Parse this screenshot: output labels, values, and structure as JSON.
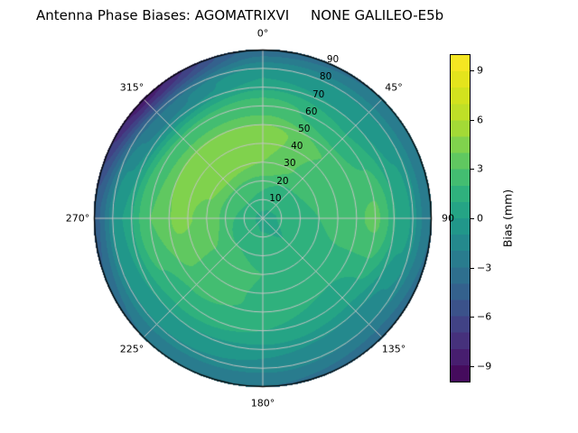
{
  "chart_data": {
    "type": "heatmap",
    "projection": "polar",
    "title": "Antenna Phase Biases: AGOMATRIXVI     NONE GALILEO-E5b",
    "colormap": "viridis",
    "contour_interval_mm": 1,
    "colorbar": {
      "label": "Bias (mm)",
      "vmin": -10,
      "vmax": 10,
      "ticks": [
        {
          "value": -9,
          "label": "−9"
        },
        {
          "value": -6,
          "label": "−6"
        },
        {
          "value": -3,
          "label": "−3"
        },
        {
          "value": 0,
          "label": "0"
        },
        {
          "value": 3,
          "label": "3"
        },
        {
          "value": 6,
          "label": "6"
        },
        {
          "value": 9,
          "label": "9"
        }
      ]
    },
    "theta_labels": [
      {
        "angle_deg": 0,
        "label": "0°"
      },
      {
        "angle_deg": 45,
        "label": "45°"
      },
      {
        "angle_deg": 90,
        "label": "90"
      },
      {
        "angle_deg": 135,
        "label": "135°"
      },
      {
        "angle_deg": 180,
        "label": "180°"
      },
      {
        "angle_deg": 225,
        "label": "225°"
      },
      {
        "angle_deg": 270,
        "label": "270°"
      },
      {
        "angle_deg": 315,
        "label": "315°"
      }
    ],
    "r_axis": {
      "max": 90,
      "grid_step": 10,
      "label_angle_deg": 22.5,
      "ticks": [
        10,
        20,
        30,
        40,
        50,
        60,
        70,
        80,
        90
      ]
    },
    "azimuth_grid_deg": [
      0,
      45,
      90,
      135,
      180,
      225,
      270,
      315
    ],
    "radius_grid": [
      0,
      15,
      30,
      45,
      60,
      75,
      90
    ],
    "bias_grid_mm": [
      [
        0.8,
        0.8,
        0.8,
        0.8,
        0.8,
        0.8,
        0.8,
        0.8
      ],
      [
        2.0,
        1.5,
        1.2,
        1.0,
        1.2,
        1.8,
        2.0,
        2.2
      ],
      [
        4.0,
        2.8,
        2.0,
        1.5,
        2.0,
        2.8,
        3.8,
        4.3
      ],
      [
        4.5,
        3.0,
        2.6,
        1.2,
        1.8,
        2.8,
        4.2,
        4.8
      ],
      [
        2.5,
        1.2,
        3.2,
        0.5,
        1.0,
        1.5,
        3.0,
        2.2
      ],
      [
        0.0,
        -0.5,
        0.5,
        -1.5,
        -1.0,
        -0.5,
        0.0,
        -2.5
      ],
      [
        -3.5,
        -3.0,
        -3.0,
        -3.5,
        -3.0,
        -3.0,
        -4.5,
        -8.5
      ]
    ],
    "colormap_stops": [
      {
        "t": 0.0,
        "color": "#440154"
      },
      {
        "t": 0.1,
        "color": "#482878"
      },
      {
        "t": 0.2,
        "color": "#3e4a89"
      },
      {
        "t": 0.3,
        "color": "#31688e"
      },
      {
        "t": 0.4,
        "color": "#26828e"
      },
      {
        "t": 0.5,
        "color": "#1f9e89"
      },
      {
        "t": 0.6,
        "color": "#35b779"
      },
      {
        "t": 0.7,
        "color": "#6ece58"
      },
      {
        "t": 0.8,
        "color": "#b5de2b"
      },
      {
        "t": 0.9,
        "color": "#dce319"
      },
      {
        "t": 1.0,
        "color": "#fde725"
      }
    ],
    "grid_line_color": "#c4c4c4",
    "outline_color": "#000000"
  }
}
